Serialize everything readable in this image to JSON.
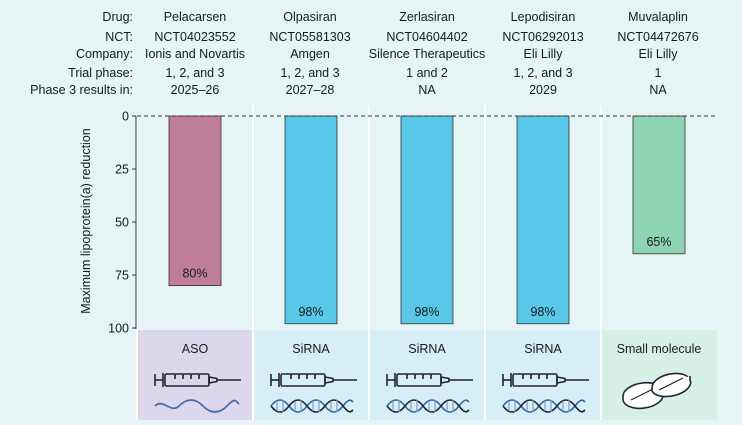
{
  "header": {
    "row_labels": [
      "Drug:",
      "NCT:",
      "Company:",
      "Trial phase:",
      "Phase 3 results in:"
    ],
    "drugs": [
      {
        "drug": "Pelacarsen",
        "nct": "NCT04023552",
        "company": "Ionis and Novartis",
        "phase": "1, 2, and 3",
        "results": "2025–26"
      },
      {
        "drug": "Olpasiran",
        "nct": "NCT05581303",
        "company": "Amgen",
        "phase": "1, 2, and 3",
        "results": "2027–28"
      },
      {
        "drug": "Zerlasiran",
        "nct": "NCT04604402",
        "company": "Silence Therapeutics",
        "phase": "1 and 2",
        "results": "NA"
      },
      {
        "drug": "Lepodisiran",
        "nct": "NCT06292013",
        "company": "Eli Lilly",
        "phase": "1, 2, and 3",
        "results": "2029"
      },
      {
        "drug": "Muvalaplin",
        "nct": "NCT04472676",
        "company": "Eli Lilly",
        "phase": "1",
        "results": "NA"
      }
    ]
  },
  "chart_data": {
    "type": "bar",
    "categories": [
      "Pelacarsen",
      "Olpasiran",
      "Zerlasiran",
      "Lepodisiran",
      "Muvalaplin"
    ],
    "values": [
      80,
      98,
      98,
      98,
      65
    ],
    "value_labels": [
      "80%",
      "98%",
      "98%",
      "98%",
      "65%"
    ],
    "ylabel": "Maximum lipoprotein(a) reduction",
    "yticks": [
      0,
      25,
      50,
      75,
      100
    ],
    "ylim": [
      0,
      100
    ],
    "y_inverted": true,
    "grid": false,
    "bar_colors": [
      "#c07f99",
      "#58c7e8",
      "#58c7e8",
      "#58c7e8",
      "#8fd3b5"
    ]
  },
  "panels": [
    {
      "label": "ASO",
      "icon": "syringe-wave-icon",
      "bg": "#ddd7ee"
    },
    {
      "label": "SiRNA",
      "icon": "syringe-dna-icon",
      "bg": "#d6eef6"
    },
    {
      "label": "SiRNA",
      "icon": "syringe-dna-icon",
      "bg": "#d6eef6"
    },
    {
      "label": "SiRNA",
      "icon": "syringe-dna-icon",
      "bg": "#d6eef6"
    },
    {
      "label": "Small molecule",
      "icon": "pills-icon",
      "bg": "#d7f0e6"
    }
  ]
}
